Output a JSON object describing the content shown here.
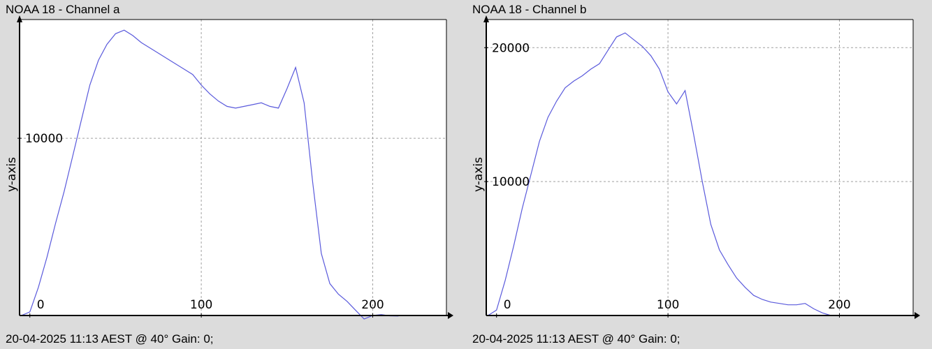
{
  "chart_data": [
    {
      "type": "line",
      "title": "NOAA 18 - Channel a",
      "footer": "20-04-2025 11:13 AEST @ 40° Gain: 0;",
      "xlabel": "",
      "ylabel": "y-axis",
      "xlim": [
        -6,
        243
      ],
      "ylim": [
        0,
        16700
      ],
      "x_ticks": [
        0,
        100,
        200
      ],
      "y_ticks": [
        10000
      ],
      "grid": true,
      "line_color": "#5a5adc",
      "x": [
        -5,
        0,
        5,
        10,
        15,
        20,
        25,
        30,
        35,
        40,
        45,
        50,
        55,
        60,
        65,
        70,
        75,
        80,
        85,
        90,
        95,
        100,
        105,
        110,
        115,
        120,
        125,
        130,
        135,
        140,
        145,
        150,
        155,
        160,
        165,
        170,
        175,
        180,
        185,
        190,
        195,
        200,
        205,
        210,
        215
      ],
      "y": [
        0,
        200,
        1600,
        3300,
        5200,
        7000,
        9000,
        11000,
        13000,
        14400,
        15300,
        15900,
        16100,
        15800,
        15400,
        15100,
        14800,
        14500,
        14200,
        13900,
        13600,
        13000,
        12500,
        12100,
        11800,
        11700,
        11800,
        11900,
        12000,
        11800,
        11700,
        12800,
        14000,
        12000,
        7500,
        3500,
        1800,
        1200,
        800,
        300,
        -200,
        0,
        50,
        -20,
        -30
      ]
    },
    {
      "type": "line",
      "title": "NOAA 18 - Channel b",
      "footer": "20-04-2025 11:13 AEST @ 40° Gain: 0;",
      "xlabel": "",
      "ylabel": "y-axis",
      "xlim": [
        -6,
        243
      ],
      "ylim": [
        0,
        22100
      ],
      "x_ticks": [
        0,
        100,
        200
      ],
      "y_ticks": [
        10000,
        20000
      ],
      "grid": true,
      "line_color": "#5a5adc",
      "x": [
        -5,
        0,
        5,
        10,
        15,
        20,
        25,
        30,
        35,
        40,
        45,
        50,
        55,
        60,
        65,
        70,
        75,
        80,
        85,
        90,
        95,
        100,
        105,
        110,
        115,
        120,
        125,
        130,
        135,
        140,
        145,
        150,
        155,
        160,
        165,
        170,
        175,
        180,
        185,
        190,
        195,
        200
      ],
      "y": [
        0,
        400,
        2600,
        5200,
        8000,
        10500,
        13000,
        14800,
        16000,
        17000,
        17500,
        17900,
        18400,
        18800,
        19800,
        20800,
        21100,
        20600,
        20100,
        19400,
        18400,
        16700,
        15800,
        16800,
        13500,
        10000,
        6800,
        4900,
        3800,
        2800,
        2100,
        1500,
        1200,
        1000,
        900,
        800,
        800,
        900,
        500,
        200,
        0,
        0
      ]
    }
  ]
}
